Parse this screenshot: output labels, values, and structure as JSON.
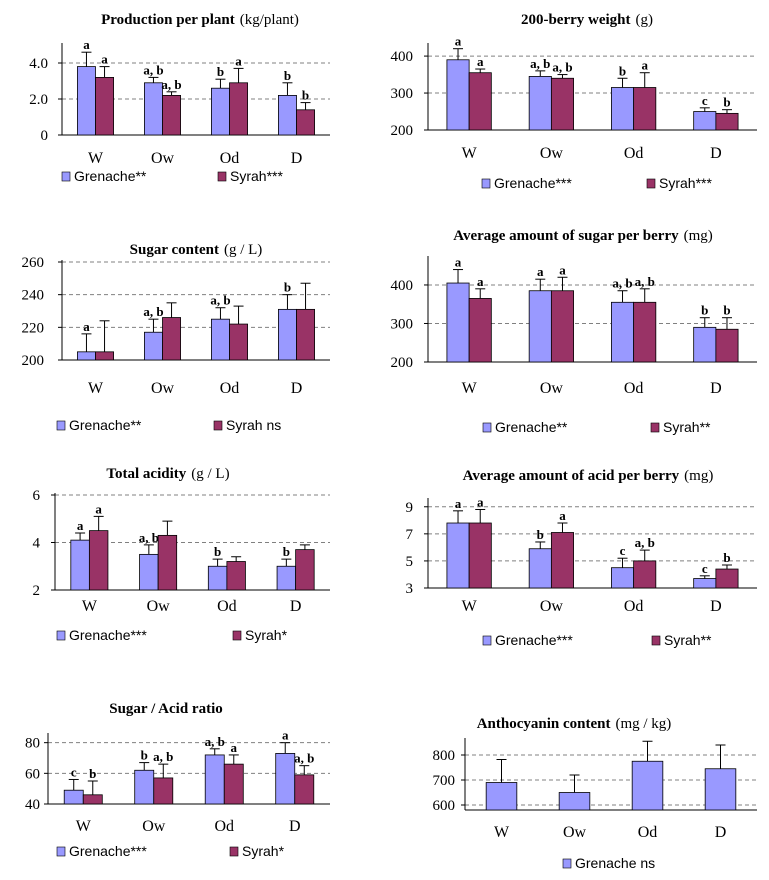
{
  "colors": {
    "grenache": "#9999ff",
    "syrah": "#993366",
    "error": "#000000",
    "grid": "#808080"
  },
  "chart_data": [
    {
      "type": "bar",
      "title": "Production per plant",
      "unit": "(kg/plant)",
      "categories": [
        "W",
        "Ow",
        "Od",
        "D"
      ],
      "ylim": [
        0,
        5
      ],
      "yticks": [
        0,
        2.0,
        4.0
      ],
      "ytick_labels": [
        "0",
        "2.0",
        "4.0"
      ],
      "grid": true,
      "series": [
        {
          "name": "Grenache**",
          "color": "#9999ff",
          "values": [
            3.8,
            2.9,
            2.6,
            2.2
          ],
          "errors": [
            0.8,
            0.3,
            0.5,
            0.7
          ],
          "letters": [
            "a",
            "a, b",
            "b",
            "b"
          ]
        },
        {
          "name": "Syrah***",
          "color": "#993366",
          "values": [
            3.2,
            2.2,
            2.9,
            1.4
          ],
          "errors": [
            0.6,
            0.2,
            0.8,
            0.4
          ],
          "letters": [
            "a",
            "a, b",
            "a",
            "b"
          ]
        }
      ]
    },
    {
      "type": "bar",
      "title": "200-berry weight",
      "unit": "(g)",
      "categories": [
        "W",
        "Ow",
        "Od",
        "D"
      ],
      "ylim": [
        200,
        430
      ],
      "yticks": [
        200,
        300,
        400
      ],
      "ytick_labels": [
        "200",
        "300",
        "400"
      ],
      "grid": true,
      "series": [
        {
          "name": "Grenache***",
          "color": "#9999ff",
          "values": [
            390,
            345,
            315,
            250
          ],
          "errors": [
            30,
            15,
            25,
            10
          ],
          "letters": [
            "a",
            "a, b",
            "b",
            "c"
          ]
        },
        {
          "name": "Syrah***",
          "color": "#993366",
          "values": [
            355,
            340,
            315,
            245
          ],
          "errors": [
            10,
            10,
            40,
            10
          ],
          "letters": [
            "a",
            "a, b",
            "a",
            "b"
          ]
        }
      ]
    },
    {
      "type": "bar",
      "title": "Sugar content",
      "unit": "(g / L)",
      "categories": [
        "W",
        "Ow",
        "Od",
        "D"
      ],
      "ylim": [
        200,
        260
      ],
      "yticks": [
        200,
        220,
        240,
        260
      ],
      "ytick_labels": [
        "200",
        "220",
        "240",
        "260"
      ],
      "grid": true,
      "series": [
        {
          "name": "Grenache**",
          "color": "#9999ff",
          "values": [
            205,
            217,
            225,
            231
          ],
          "errors": [
            11,
            8,
            7,
            9
          ],
          "letters": [
            "a",
            "a, b",
            "a, b",
            "b"
          ]
        },
        {
          "name": "Syrah ns",
          "color": "#993366",
          "values": [
            205,
            226,
            222,
            231
          ],
          "errors": [
            19,
            9,
            11,
            16
          ],
          "letters": [
            "",
            "",
            "",
            ""
          ]
        }
      ]
    },
    {
      "type": "bar",
      "title": "Average amount of sugar per berry",
      "unit": "(mg)",
      "categories": [
        "W",
        "Ow",
        "Od",
        "D"
      ],
      "ylim": [
        200,
        470
      ],
      "yticks": [
        200,
        300,
        400
      ],
      "ytick_labels": [
        "200",
        "300",
        "400"
      ],
      "grid": true,
      "series": [
        {
          "name": "Grenache**",
          "color": "#9999ff",
          "values": [
            405,
            385,
            355,
            290
          ],
          "errors": [
            35,
            30,
            30,
            25
          ],
          "letters": [
            "a",
            "a",
            "a, b",
            "b"
          ]
        },
        {
          "name": "Syrah**",
          "color": "#993366",
          "values": [
            365,
            385,
            355,
            285
          ],
          "errors": [
            25,
            35,
            35,
            30
          ],
          "letters": [
            "a",
            "a",
            "a, b",
            "b"
          ]
        }
      ]
    },
    {
      "type": "bar",
      "title": "Total acidity",
      "unit": "(g / L)",
      "categories": [
        "W",
        "Ow",
        "Od",
        "D"
      ],
      "ylim": [
        2,
        6
      ],
      "yticks": [
        2,
        4,
        6
      ],
      "ytick_labels": [
        "2",
        "4",
        "6"
      ],
      "grid": true,
      "series": [
        {
          "name": "Grenache***",
          "color": "#9999ff",
          "values": [
            4.1,
            3.5,
            3.0,
            3.0
          ],
          "errors": [
            0.3,
            0.4,
            0.3,
            0.3
          ],
          "letters": [
            "a",
            "a, b",
            "b",
            "b"
          ]
        },
        {
          "name": "Syrah*",
          "color": "#993366",
          "values": [
            4.5,
            4.3,
            3.2,
            3.7
          ],
          "errors": [
            0.6,
            0.6,
            0.2,
            0.2
          ],
          "letters": [
            "a",
            "",
            "",
            ""
          ]
        }
      ]
    },
    {
      "type": "bar",
      "title": "Average amount of acid per berry",
      "unit": "(mg)",
      "categories": [
        "W",
        "Ow",
        "Od",
        "D"
      ],
      "ylim": [
        3,
        9.5
      ],
      "yticks": [
        3,
        5,
        7,
        9
      ],
      "ytick_labels": [
        "3",
        "5",
        "7",
        "9"
      ],
      "grid": true,
      "series": [
        {
          "name": "Grenache***",
          "color": "#9999ff",
          "values": [
            7.8,
            5.9,
            4.5,
            3.7
          ],
          "errors": [
            0.9,
            0.5,
            0.7,
            0.2
          ],
          "letters": [
            "a",
            "b",
            "c",
            "c"
          ]
        },
        {
          "name": "Syrah**",
          "color": "#993366",
          "values": [
            7.8,
            7.1,
            5.0,
            4.4
          ],
          "errors": [
            1.0,
            0.7,
            0.8,
            0.3
          ],
          "letters": [
            "a",
            "a",
            "a, b",
            "b"
          ]
        }
      ]
    },
    {
      "type": "bar",
      "title": "Sugar / Acid ratio",
      "unit": "",
      "categories": [
        "W",
        "Ow",
        "Od",
        "D"
      ],
      "ylim": [
        40,
        85
      ],
      "yticks": [
        40,
        60,
        80
      ],
      "ytick_labels": [
        "40",
        "60",
        "80"
      ],
      "grid": true,
      "series": [
        {
          "name": "Grenache***",
          "color": "#9999ff",
          "values": [
            49,
            62,
            72,
            73
          ],
          "errors": [
            7,
            5,
            4,
            7
          ],
          "letters": [
            "c",
            "b",
            "a, b",
            "a"
          ]
        },
        {
          "name": "Syrah*",
          "color": "#993366",
          "values": [
            46,
            57,
            66,
            59
          ],
          "errors": [
            9,
            9,
            6,
            6
          ],
          "letters": [
            "b",
            "a, b",
            "a",
            "a, b"
          ]
        }
      ]
    },
    {
      "type": "bar",
      "title": "Anthocyanin content",
      "unit": "(mg / kg)",
      "categories": [
        "W",
        "Ow",
        "Od",
        "D"
      ],
      "ylim": [
        580,
        860
      ],
      "yticks": [
        600,
        700,
        800
      ],
      "ytick_labels": [
        "600",
        "700",
        "800"
      ],
      "grid": true,
      "series": [
        {
          "name": "Grenache ns",
          "color": "#9999ff",
          "values": [
            690,
            650,
            775,
            745
          ],
          "errors": [
            92,
            70,
            80,
            95
          ],
          "letters": [
            "",
            "",
            "",
            ""
          ]
        }
      ]
    }
  ]
}
